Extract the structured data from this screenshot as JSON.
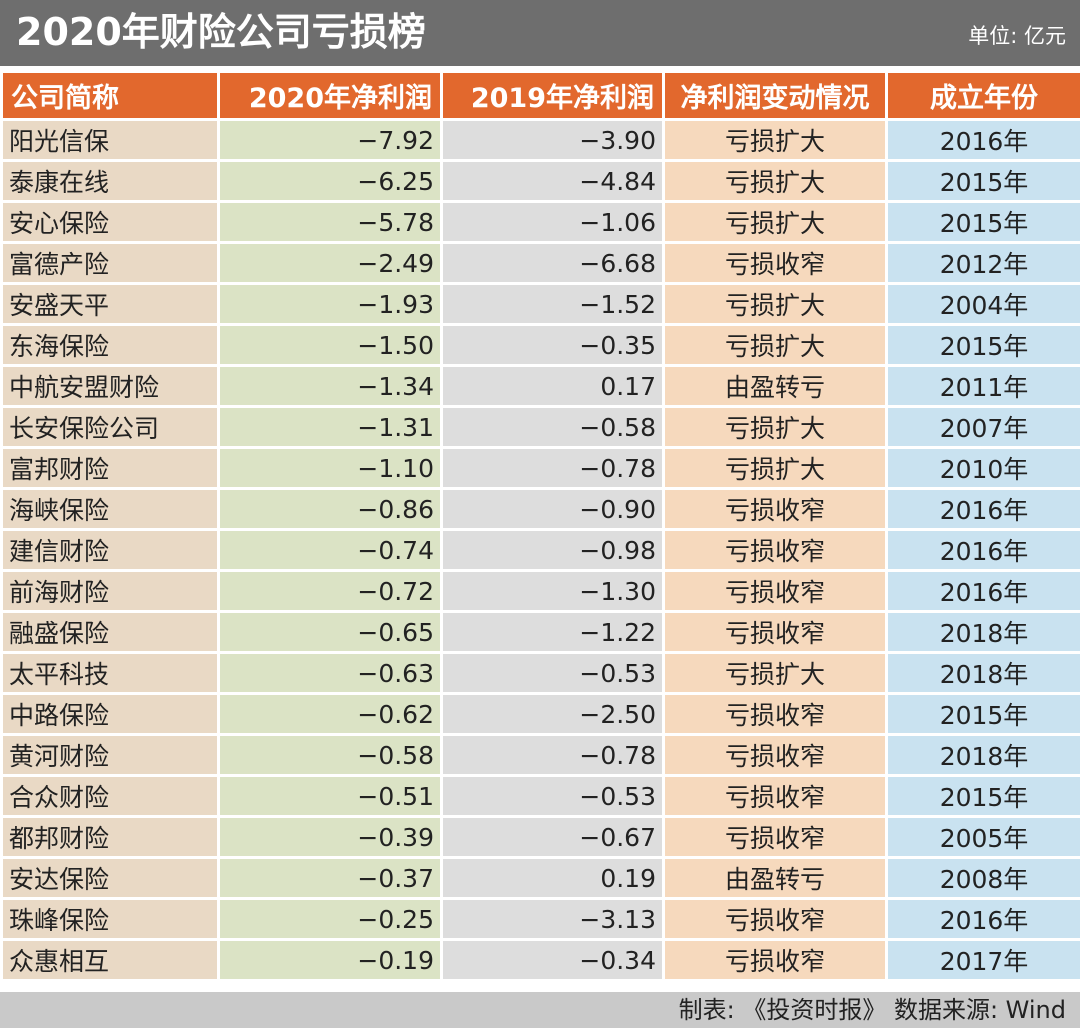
{
  "title": "2020年财险公司亏损榜",
  "unit": "单位: 亿元",
  "table": {
    "headers": [
      "公司简称",
      "2020年净利润",
      "2019年净利润",
      "净利润变动情况",
      "成立年份"
    ],
    "rows": [
      [
        "阳光信保",
        "−7.92",
        "−3.90",
        "亏损扩大",
        "2016年"
      ],
      [
        "泰康在线",
        "−6.25",
        "−4.84",
        "亏损扩大",
        "2015年"
      ],
      [
        "安心保险",
        "−5.78",
        "−1.06",
        "亏损扩大",
        "2015年"
      ],
      [
        "富德产险",
        "−2.49",
        "−6.68",
        "亏损收窄",
        "2012年"
      ],
      [
        "安盛天平",
        "−1.93",
        "−1.52",
        "亏损扩大",
        "2004年"
      ],
      [
        "东海保险",
        "−1.50",
        "−0.35",
        "亏损扩大",
        "2015年"
      ],
      [
        "中航安盟财险",
        "−1.34",
        "0.17",
        "由盈转亏",
        "2011年"
      ],
      [
        "长安保险公司",
        "−1.31",
        "−0.58",
        "亏损扩大",
        "2007年"
      ],
      [
        "富邦财险",
        "−1.10",
        "−0.78",
        "亏损扩大",
        "2010年"
      ],
      [
        "海峡保险",
        "−0.86",
        "−0.90",
        "亏损收窄",
        "2016年"
      ],
      [
        "建信财险",
        "−0.74",
        "−0.98",
        "亏损收窄",
        "2016年"
      ],
      [
        "前海财险",
        "−0.72",
        "−1.30",
        "亏损收窄",
        "2016年"
      ],
      [
        "融盛保险",
        "−0.65",
        "−1.22",
        "亏损收窄",
        "2018年"
      ],
      [
        "太平科技",
        "−0.63",
        "−0.53",
        "亏损扩大",
        "2018年"
      ],
      [
        "中路保险",
        "−0.62",
        "−2.50",
        "亏损收窄",
        "2015年"
      ],
      [
        "黄河财险",
        "−0.58",
        "−0.78",
        "亏损收窄",
        "2018年"
      ],
      [
        "合众财险",
        "−0.51",
        "−0.53",
        "亏损收窄",
        "2015年"
      ],
      [
        "都邦财险",
        "−0.39",
        "−0.67",
        "亏损收窄",
        "2005年"
      ],
      [
        "安达保险",
        "−0.37",
        "0.19",
        "由盈转亏",
        "2008年"
      ],
      [
        "珠峰保险",
        "−0.25",
        "−3.13",
        "亏损收窄",
        "2016年"
      ],
      [
        "众惠相互",
        "−0.19",
        "−0.34",
        "亏损收窄",
        "2017年"
      ]
    ]
  },
  "footer": "制表: 《投资时报》  数据来源: Wind",
  "colors": {
    "title_bg": "#6e6e6e",
    "header_bg": "#e2682d",
    "name_col": "#e9d9c5",
    "profit_2020_col": "#dbe3c5",
    "profit_2019_col": "#dddddd",
    "change_col": "#f6d9bd",
    "year_col": "#c9e2f0",
    "footer_bg": "#c9c9c9"
  }
}
